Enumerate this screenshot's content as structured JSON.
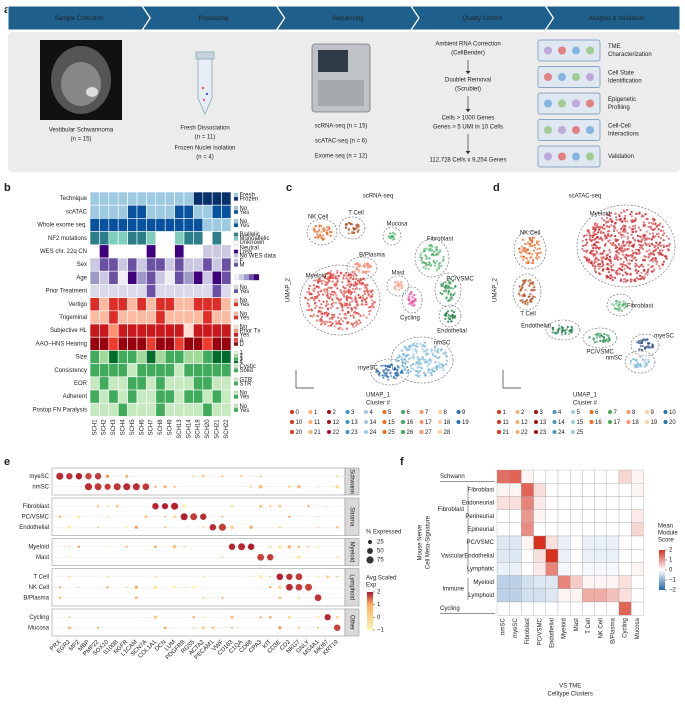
{
  "panel_a": {
    "label": "a",
    "stages": [
      "Sample Collection",
      "Processing",
      "Sequencing",
      "Quality Control",
      "Analysis & Validation"
    ],
    "sample": [
      "Vestibular Schwannoma",
      "(n = 15)"
    ],
    "processing": [
      [
        "Fresh Dissociation",
        "(n = 11)"
      ],
      [
        "Frozen Nuclei Isolation",
        "(n = 4)"
      ]
    ],
    "sequencing": [
      "scRNA-seq (n = 15)",
      "scATAC-seq (n = 6)",
      "Exome seq (n = 12)"
    ],
    "qc": [
      [
        "Ambient RNA Correction",
        "(CellBender)"
      ],
      [
        "Doublet Removal",
        "(Scrublet)"
      ],
      [
        "Cells > 1000 Genes",
        "Genes > 5 UMI in 10 Cells"
      ],
      [
        "112,728 Cells x 9,254 Genes"
      ]
    ],
    "analysis": [
      [
        "TME",
        "Characterization"
      ],
      [
        "Cell State",
        "Identification"
      ],
      [
        "Epigenetic",
        "Profiling"
      ],
      [
        "Cell-Cell",
        "Interactions"
      ],
      [
        "Validation"
      ]
    ]
  },
  "panel_b": {
    "label": "b",
    "rows": [
      {
        "name": "Technique",
        "legend": [
          {
            "label": "Fresh",
            "color": "#9ecae1"
          },
          {
            "label": "Frozen",
            "color": "#08306b"
          }
        ],
        "cells": "000000000001111"
      },
      {
        "name": "scATAC",
        "legend": [
          {
            "label": "No",
            "color": "#9ecae1"
          },
          {
            "label": "Yes",
            "color": "#08519c"
          }
        ],
        "cells": "000011000110011"
      },
      {
        "name": "Whole exome seq.",
        "legend": [
          {
            "label": "No",
            "color": "#9ecae1"
          },
          {
            "label": "Yes",
            "color": "#08519c"
          }
        ],
        "cells": "111111111111000"
      },
      {
        "name": "NF2 mutations",
        "legend": [
          {
            "label": "Biallelic",
            "color": "#2c7f8a"
          },
          {
            "label": "Monoallelic",
            "color": "#7fcdbb"
          },
          {
            "label": "Unknown",
            "color": "#ffffff"
          }
        ],
        "cells": "001100122100202"
      },
      {
        "name": "WES chr. 22q CN",
        "legend": [
          {
            "label": "Neutral",
            "color": "#ffffff"
          },
          {
            "label": "Loss",
            "color": "#3f007d"
          },
          {
            "label": "No WES data",
            "color": "#cbc9e2"
          }
        ],
        "cells": "010000100100222"
      },
      {
        "name": "Sex",
        "legend": [
          {
            "label": "F",
            "color": "#cbc9e2"
          },
          {
            "label": "M",
            "color": "#6a51a3"
          }
        ],
        "cells": "011010110100101"
      },
      {
        "name": "Age",
        "shades": [
          "#efedf5",
          "#cbc9e2",
          "#9e9ac8",
          "#6a51a3",
          "#3f007d"
        ],
        "cells": "213042310324143"
      },
      {
        "name": "Prior Treatment",
        "legend": [
          {
            "label": "No",
            "color": "#dadaeb"
          },
          {
            "label": "Yes",
            "color": "#6a51a3"
          }
        ],
        "cells": "000000100000010"
      },
      {
        "name": "Vertigo",
        "legend": [
          {
            "label": "No",
            "color": "#fcbba1"
          },
          {
            "label": "Yes",
            "color": "#de2d26"
          }
        ],
        "cells": "101101011001110"
      },
      {
        "name": "Trigeminal",
        "legend": [
          {
            "label": "No",
            "color": "#fcbba1"
          },
          {
            "label": "Yes",
            "color": "#de2d26"
          }
        ],
        "cells": "001000010000100"
      },
      {
        "name": "Subjective HL",
        "legend": [
          {
            "label": "No",
            "color": "#fee0d2"
          },
          {
            "label": "Prior Tx",
            "color": "#fc9272"
          },
          {
            "label": "Yes",
            "color": "#cb181d"
          }
        ],
        "cells": "221222222202222"
      },
      {
        "name": "AAO–HNS Hearing",
        "legend": [
          {
            "label": "A",
            "color": "#ef3b2c"
          },
          {
            "label": "D",
            "color": "#99000d"
          }
        ],
        "cells": "110111011011011"
      },
      {
        "name": "Size",
        "legend": [
          {
            "label": "1",
            "color": "#e5f5e0"
          },
          {
            "label": "2",
            "color": "#a1d99b"
          },
          {
            "label": "3",
            "color": "#41ab5d"
          },
          {
            "label": "4",
            "color": "#006d2c"
          }
        ],
        "cells": "213221312211233"
      },
      {
        "name": "Consistency",
        "legend": [
          {
            "label": "Cystic",
            "color": "#c7e9c0"
          },
          {
            "label": "Solid",
            "color": "#41ab5d"
          }
        ],
        "cells": "111101111011111"
      },
      {
        "name": "EOR",
        "legend": [
          {
            "label": "GTR",
            "color": "#c7e9c0"
          },
          {
            "label": "STR",
            "color": "#41ab5d"
          }
        ],
        "cells": "010011010001100"
      },
      {
        "name": "Adherent",
        "legend": [
          {
            "label": "No",
            "color": "#c7e9c0"
          },
          {
            "label": "Yes",
            "color": "#41ab5d"
          }
        ],
        "cells": "101010011011010"
      },
      {
        "name": "Postop FN Paralysis",
        "legend": [
          {
            "label": "No",
            "color": "#c7e9c0"
          },
          {
            "label": "Yes",
            "color": "#41ab5d"
          }
        ],
        "cells": "000100010000100"
      }
    ],
    "samples": [
      "SCH1",
      "SCH2",
      "SCH3",
      "SCH4",
      "SCH5",
      "SCH6",
      "SCH7",
      "SCH8",
      "SCH9",
      "SCH13",
      "SCH14",
      "SCH18",
      "SCH20",
      "SCH21",
      "SCH22"
    ]
  },
  "cluster_palette": [
    "#d7301f",
    "#fdae6b",
    "#a50f15",
    "#4292c6",
    "#9ecae1",
    "#f16913",
    "#41ab5d",
    "#fc9272",
    "#fdd0a2",
    "#2171b5"
  ],
  "panel_c": {
    "label": "c",
    "title": "scRNA-seq",
    "x_label": "UMAP_1",
    "y_label": "UMAP_2",
    "legend_title": "Cluster #",
    "clusters": [
      0,
      1,
      2,
      3,
      4,
      5,
      6,
      7,
      8,
      9,
      10,
      11,
      12,
      13,
      14,
      15,
      16,
      17,
      18,
      19,
      20,
      21,
      22,
      23,
      24,
      25,
      26,
      27,
      28
    ],
    "cell_types": [
      {
        "name": "NK Cell",
        "color": "#e6550d"
      },
      {
        "name": "T Cell",
        "color": "#a63603"
      },
      {
        "name": "Mucosa",
        "color": "#31a354"
      },
      {
        "name": "Myeloid",
        "color": "#de2d26"
      },
      {
        "name": "B/Plasma",
        "color": "#fb6a4a"
      },
      {
        "name": "Mast",
        "color": "#fc9272"
      },
      {
        "name": "Fibroblast",
        "color": "#41ab5d"
      },
      {
        "name": "PC/VSMC",
        "color": "#238b45"
      },
      {
        "name": "Cycling",
        "color": "#e7298a"
      },
      {
        "name": "Endothelial",
        "color": "#006d2c"
      },
      {
        "name": "nmSC",
        "color": "#6baed6"
      },
      {
        "name": "myeSC",
        "color": "#08519c"
      }
    ]
  },
  "panel_d": {
    "label": "d",
    "title": "scATAC-seq",
    "x_label": "UMAP_1",
    "y_label": "UMAP_2",
    "legend_title": "Cluster #",
    "clusters": [
      1,
      2,
      3,
      4,
      5,
      6,
      7,
      8,
      9,
      10,
      11,
      12,
      13,
      14,
      15,
      16,
      17,
      18,
      19,
      20,
      21,
      22,
      23,
      24,
      25
    ],
    "cell_types": [
      {
        "name": "Myeloid",
        "color": "#cb181d"
      },
      {
        "name": "NK Cell",
        "color": "#e6550d"
      },
      {
        "name": "T Cell",
        "color": "#a63603"
      },
      {
        "name": "Fibroblast",
        "color": "#41ab5d"
      },
      {
        "name": "Endothelial",
        "color": "#006d2c"
      },
      {
        "name": "PC/VSMC",
        "color": "#238b45"
      },
      {
        "name": "myeSC",
        "color": "#08306b"
      },
      {
        "name": "nmSC",
        "color": "#6baed6"
      }
    ]
  },
  "panel_e": {
    "label": "e",
    "groups": [
      "Schwann",
      "Stroma",
      "Myeloid",
      "Lymphoid",
      "Other"
    ],
    "rows": [
      {
        "name": "myeSC",
        "group": 0,
        "high": [
          0,
          4
        ]
      },
      {
        "name": "nmSC",
        "group": 0,
        "high": [
          3,
          9
        ]
      },
      {
        "name": "Fibroblast",
        "group": 1,
        "high": [
          10,
          12
        ]
      },
      {
        "name": "PC/VSMC",
        "group": 1,
        "high": [
          13,
          15
        ]
      },
      {
        "name": "Endothelial",
        "group": 1,
        "high": [
          16,
          17
        ]
      },
      {
        "name": "Myeloid",
        "group": 2,
        "high": [
          18,
          20
        ]
      },
      {
        "name": "Mast",
        "group": 2,
        "high": [
          21,
          22
        ]
      },
      {
        "name": "T Cell",
        "group": 3,
        "high": [
          23,
          25
        ]
      },
      {
        "name": "NK Cell",
        "group": 3,
        "high": [
          24,
          26
        ]
      },
      {
        "name": "B/Plasma",
        "group": 3,
        "high": [
          27,
          27
        ]
      },
      {
        "name": "Cycling",
        "group": 4,
        "high": [
          28,
          28
        ]
      },
      {
        "name": "Mucosa",
        "group": 4,
        "high": [
          29,
          29
        ]
      }
    ],
    "genes": [
      "PRX",
      "EGR2",
      "MPZ",
      "MBP",
      "PMP22",
      "SOX10",
      "S100B",
      "NGFR",
      "L1CAM",
      "SCN7A",
      "COL1A1",
      "DCN",
      "LUM",
      "PDGFRB",
      "RGS5",
      "ACTA2",
      "PECAM1",
      "VWF",
      "CD163",
      "C1QA",
      "CD68",
      "CPA3",
      "KIT",
      "CD3E",
      "CD2",
      "NKG7",
      "GNLY",
      "MS4A1",
      "MKI67",
      "KRT19"
    ],
    "size_title": "% Expressed",
    "sizes": [
      25,
      50,
      75
    ],
    "color_title": [
      "Avg Scaled",
      "Exp"
    ],
    "color_lim": [
      -1,
      2
    ],
    "color_ticks": [
      2,
      1,
      0,
      {
        "value": -1,
        "label": "−1"
      }
    ],
    "colors": [
      "#fff3b0",
      "#fdae61",
      "#b2182b"
    ]
  },
  "panel_f": {
    "label": "f",
    "y_label": [
      "Mouse Nerve",
      "Cell Meta-Signature"
    ],
    "x_label": [
      "VS TME",
      "Celltype Clusters"
    ],
    "columns": [
      "nmSC",
      "myeSC",
      "Fibroblast",
      "PC/VSMC",
      "Endothelial",
      "Myeloid",
      "Mast",
      "T Cell",
      "NK Cell",
      "B/Plasma",
      "Cycling",
      "Mucosa"
    ],
    "groups": [
      {
        "name": "Schwann",
        "rows": [
          {
            "values": [
              1.4,
              1.5,
              0.1,
              0,
              0,
              0,
              0,
              0,
              0,
              0,
              0.4,
              0.1
            ]
          }
        ]
      },
      {
        "name": "Fibroblast",
        "rows": [
          {
            "name": "Fibroblast",
            "values": [
              0.1,
              0.1,
              1.5,
              0.3,
              0,
              0,
              0,
              0,
              0,
              0,
              0,
              0.1
            ]
          },
          {
            "name": "Endoneurial",
            "values": [
              0.3,
              0.3,
              1.2,
              0.2,
              0,
              0,
              0,
              0,
              0,
              0,
              0,
              0
            ]
          },
          {
            "name": "Perineurial",
            "values": [
              0,
              0,
              1.0,
              0.1,
              0,
              0,
              0,
              0,
              0,
              0,
              0,
              0.2
            ]
          },
          {
            "name": "Epineurial",
            "values": [
              0,
              0,
              1.1,
              0,
              0,
              0,
              0,
              0,
              0,
              0,
              0,
              0.4
            ]
          }
        ]
      },
      {
        "name": "Vascular",
        "rows": [
          {
            "name": "PC/VSMC",
            "values": [
              -0.3,
              -0.3,
              0.1,
              2.0,
              0.3,
              -0.2,
              0,
              -0.2,
              -0.2,
              -0.2,
              0,
              0
            ]
          },
          {
            "name": "Endothelial",
            "values": [
              -0.3,
              -0.3,
              0,
              0.3,
              2.0,
              -0.2,
              0,
              -0.2,
              -0.2,
              -0.2,
              0,
              0
            ]
          },
          {
            "name": "Lymphatic",
            "values": [
              -0.2,
              -0.2,
              0,
              0.2,
              1.2,
              -0.1,
              0,
              -0.1,
              -0.1,
              -0.1,
              0,
              0.1
            ]
          }
        ]
      },
      {
        "name": "Immune",
        "rows": [
          {
            "name": "Myeloid",
            "values": [
              -0.6,
              -0.6,
              -0.4,
              -0.3,
              -0.3,
              1.2,
              0.5,
              0.1,
              0.1,
              0.1,
              0.3,
              0
            ]
          },
          {
            "name": "Lymphoid",
            "values": [
              -0.6,
              -0.6,
              -0.4,
              -0.4,
              -0.3,
              0.1,
              0.1,
              0.8,
              0.8,
              0.6,
              0.3,
              0
            ]
          }
        ]
      },
      {
        "name": "Cycling",
        "rows": [
          {
            "values": [
              0,
              0,
              0,
              0,
              0,
              0,
              0,
              0,
              0,
              0,
              1.5,
              0
            ]
          }
        ]
      }
    ],
    "legend_title": [
      "Mean",
      "Module",
      "Score"
    ],
    "color_lim": [
      -2,
      2
    ],
    "color_ticks": [
      2,
      1,
      0,
      {
        "value": -1,
        "label": "−1"
      },
      {
        "value": -2,
        "label": "−2"
      }
    ],
    "colors": [
      "#2166ac",
      "#ffffff",
      "#d7301f"
    ]
  }
}
